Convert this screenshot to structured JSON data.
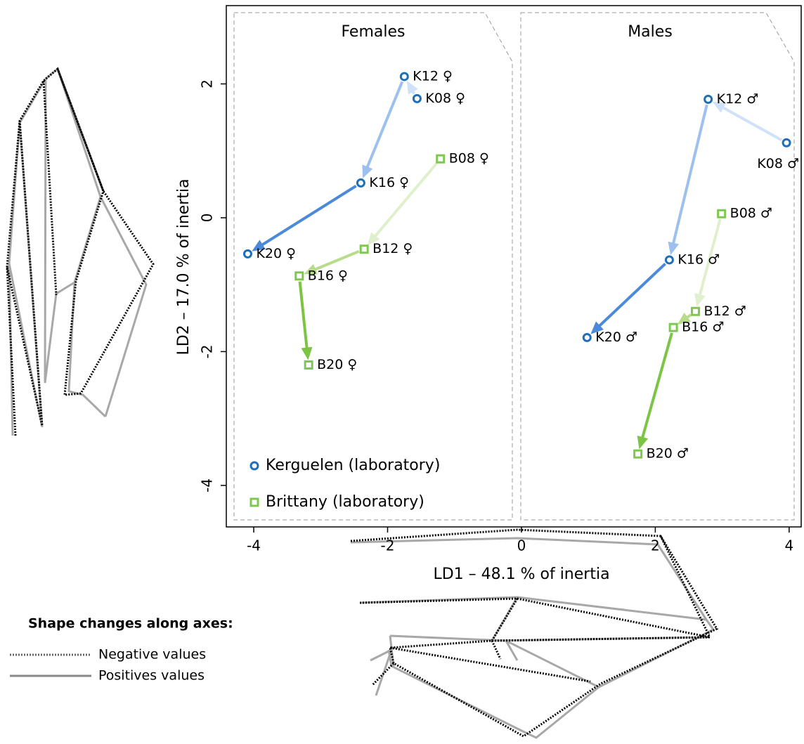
{
  "chart_data": {
    "type": "scatter",
    "xlabel": "LD1 –  48.1 % of inertia",
    "ylabel": "LD2 – 17.0 % of inertia",
    "panel_labels": [
      "Females",
      "Males"
    ],
    "xlim": [
      -4.41,
      4.18
    ],
    "xticks": [
      -4,
      -2,
      0,
      2,
      4
    ],
    "ylim": [
      -4.62,
      3.17
    ],
    "yticks": [
      -4,
      -2,
      0,
      2
    ],
    "series": [
      {
        "name": "Kerguelen (laboratory)",
        "color": "#1f6fb8",
        "marker": "circle",
        "arrow_colors": [
          "#cfe2f7",
          "#9ec0ee",
          "#4a8ad8"
        ],
        "point_labels": [
          "K08 ♀",
          "K12 ♀",
          "K16 ♀",
          "K20 ♀",
          "K08 ♂",
          "K12 ♂",
          "K16 ♂",
          "K20 ♂"
        ],
        "x": [
          -1.56,
          -1.75,
          -2.4,
          -4.09,
          3.96,
          2.79,
          2.21,
          0.98
        ],
        "values": [
          1.78,
          2.11,
          0.52,
          -0.54,
          1.12,
          1.77,
          -0.63,
          -1.79
        ]
      },
      {
        "name": "Brittany (laboratory)",
        "color": "#7ec850",
        "marker": "square",
        "arrow_colors": [
          "#e0f0cc",
          "#b7dd8a",
          "#7cc444"
        ],
        "point_labels": [
          "B08 ♀",
          "B12 ♀",
          "B16 ♀",
          "B20 ♀",
          "B08 ♂",
          "B12 ♂",
          "B16 ♂",
          "B20 ♂"
        ],
        "x": [
          -1.21,
          -2.35,
          -3.32,
          -3.18,
          2.99,
          2.6,
          2.27,
          1.74
        ],
        "values": [
          0.88,
          -0.47,
          -0.87,
          -2.2,
          0.06,
          -1.4,
          -1.64,
          -3.53
        ]
      }
    ]
  },
  "shape_legend": {
    "title": "Shape changes along axes:",
    "negative": "Negative values",
    "positive": "Positives values"
  }
}
